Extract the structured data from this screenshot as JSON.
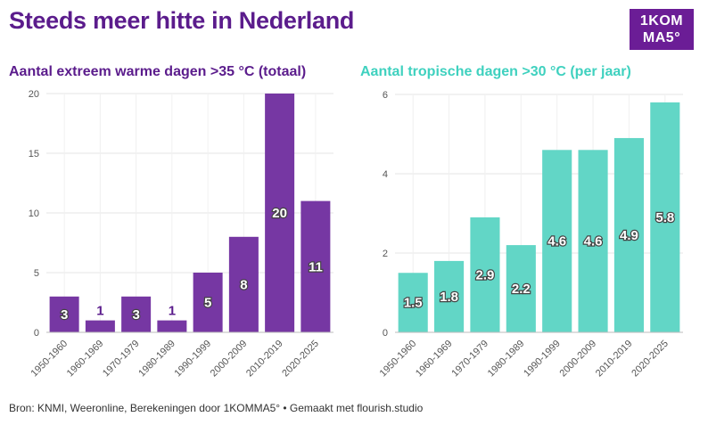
{
  "title": "Steeds meer hitte in Nederland",
  "logo": {
    "line1": "1KOM",
    "line2": "MA5°"
  },
  "source": "Bron: KNMI, Weeronline, Berekeningen door 1KOMMA5° • Gemaakt met flourish.studio",
  "colors": {
    "purple": "#7637a3",
    "teal": "#62d6c6",
    "title": "#5b1c8c",
    "teal_title": "#3fd1bf"
  },
  "chart_data": [
    {
      "type": "bar",
      "title": "Aantal extreem warme dagen >35 °C (totaal)",
      "categories": [
        "1950-1960",
        "1960-1969",
        "1970-1979",
        "1980-1989",
        "1990-1999",
        "2000-2009",
        "2010-2019",
        "2020-2025"
      ],
      "values": [
        3,
        1,
        3,
        1,
        5,
        8,
        20,
        11
      ],
      "labels": [
        "3",
        "1",
        "3",
        "1",
        "5",
        "8",
        "20",
        "11"
      ],
      "ylim": [
        0,
        20
      ],
      "yticks": [
        0,
        5,
        10,
        15,
        20
      ],
      "xlabel": "",
      "ylabel": ""
    },
    {
      "type": "bar",
      "title": "Aantal tropische dagen >30 °C (per jaar)",
      "categories": [
        "1950-1960",
        "1960-1969",
        "1970-1979",
        "1980-1989",
        "1990-1999",
        "2000-2009",
        "2010-2019",
        "2020-2025"
      ],
      "values": [
        1.5,
        1.8,
        2.9,
        2.2,
        4.6,
        4.6,
        4.9,
        5.8
      ],
      "labels": [
        "1.5",
        "1.8",
        "2.9",
        "2.2",
        "4.6",
        "4.6",
        "4.9",
        "5.8"
      ],
      "ylim": [
        0,
        6
      ],
      "yticks": [
        0,
        2,
        4,
        6
      ],
      "xlabel": "",
      "ylabel": ""
    }
  ]
}
